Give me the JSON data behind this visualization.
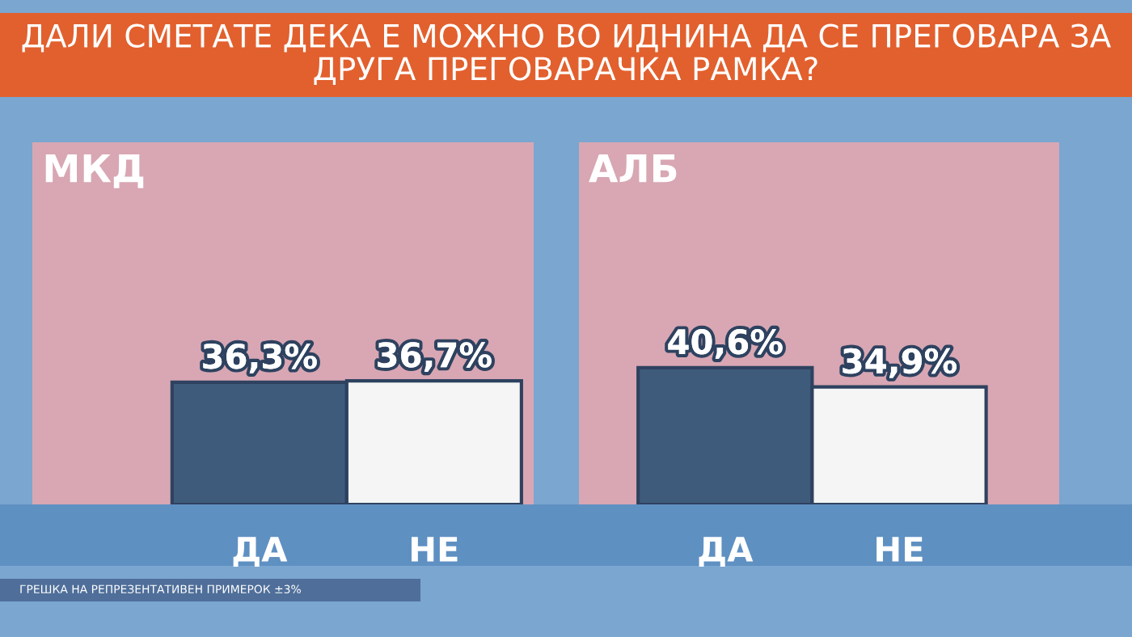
{
  "chart_data": [
    {
      "type": "bar",
      "title": "ДАЛИ СМЕТАТЕ ДЕКА Е МОЖНО ВО ИДНИНА ДА СЕ ПРЕГОВАРА ЗА\nДРУГА ПРЕГОВАРАЧКА РАМКА?",
      "subtitle": "МКД",
      "categories": [
        "ДА",
        "НЕ"
      ],
      "values": [
        36.3,
        36.7
      ],
      "colors": [
        "#3f5b7c",
        "#f5f5f5"
      ],
      "value_labels": [
        "36,3%",
        "36,7%"
      ],
      "annotations": [
        "ГРЕШКА НА РЕПРЕЗЕНТАТИВЕН ПРИМЕРОК ±3%"
      ]
    },
    {
      "type": "bar",
      "subtitle": "АЛБ",
      "categories": [
        "ДА",
        "НЕ"
      ],
      "values": [
        40.6,
        34.9
      ],
      "colors": [
        "#3f5b7c",
        "#f5f5f5"
      ],
      "value_labels": [
        "40,6%",
        "34,9%"
      ]
    }
  ]
}
